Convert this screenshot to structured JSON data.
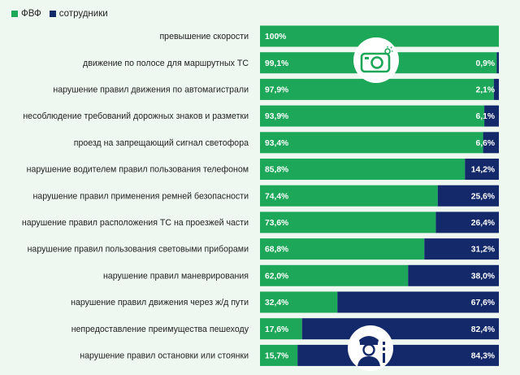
{
  "legend": {
    "fvf_label": "ФВФ",
    "staff_label": "сотрудники"
  },
  "colors": {
    "fvf": "#1da758",
    "staff": "#13296a",
    "background": "#eef8f1"
  },
  "icons": {
    "top": "traffic-camera-icon",
    "bottom": "police-officer-icon"
  },
  "chart_data": {
    "type": "bar",
    "orientation": "horizontal",
    "stacked": true,
    "xlim": [
      0,
      100
    ],
    "categories": [
      "превышение скорости",
      "движение по полосе для маршрутных ТС",
      "нарушение правил движения по автомагистрали",
      "несоблюдение требований дорожных знаков и разметки",
      "проезд на запрещающий сигнал светофора",
      "нарушение водителем правил пользования телефоном",
      "нарушение правил применения ремней безопасности",
      "нарушение правил расположения ТС на проезжей части",
      "нарушение правил пользования световыми приборами",
      "нарушение правил маневрирования",
      "нарушение правил движения через ж/д пути",
      "непредоставление преимущества пешеходу",
      "нарушение правил остановки или стоянки"
    ],
    "series": [
      {
        "name": "ФВФ",
        "values": [
          100,
          99.1,
          97.9,
          93.9,
          93.4,
          85.8,
          74.4,
          73.6,
          68.8,
          62.0,
          32.4,
          17.6,
          15.7
        ],
        "labels": [
          "100%",
          "99,1%",
          "97,9%",
          "93,9%",
          "93,4%",
          "85,8%",
          "74,4%",
          "73,6%",
          "68,8%",
          "62,0%",
          "32,4%",
          "17,6%",
          "15,7%"
        ]
      },
      {
        "name": "сотрудники",
        "values": [
          0,
          0.9,
          2.1,
          6.1,
          6.6,
          14.2,
          25.6,
          26.4,
          31.2,
          38.0,
          67.6,
          82.4,
          84.3
        ],
        "labels": [
          "",
          "0,9%",
          "2,1%",
          "6,1%",
          "6,6%",
          "14,2%",
          "25,6%",
          "26,4%",
          "31,2%",
          "38,0%",
          "67,6%",
          "82,4%",
          "84,3%"
        ]
      }
    ]
  }
}
